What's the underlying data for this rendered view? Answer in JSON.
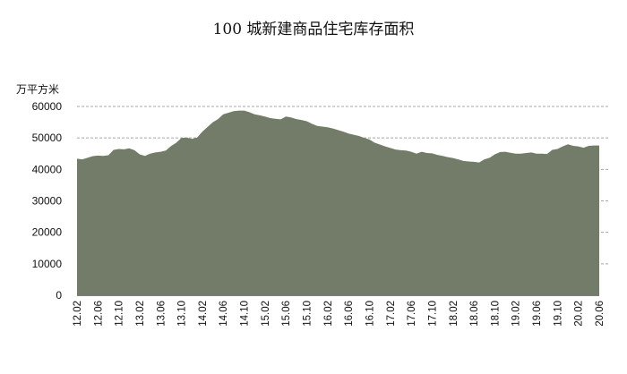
{
  "chart_data": {
    "type": "area",
    "title": "100 城新建商品住宅库存面积",
    "ylabel": "万平方米",
    "ylim": [
      0,
      60000
    ],
    "yticks": [
      0,
      10000,
      20000,
      30000,
      40000,
      50000,
      60000
    ],
    "ytick_labels": [
      "0",
      "10000",
      "20000",
      "30000",
      "40000",
      "50000",
      "60000"
    ],
    "grid": "dashed horizontal",
    "xtick_labels": [
      "12.02",
      "12.06",
      "12.10",
      "13.02",
      "13.06",
      "13.10",
      "14.02",
      "14.06",
      "14.10",
      "15.02",
      "15.06",
      "15.10",
      "16.02",
      "16.06",
      "16.10",
      "17.02",
      "17.06",
      "17.10",
      "18.02",
      "18.06",
      "18.10",
      "19.02",
      "19.06",
      "19.10",
      "20.02",
      "20.06"
    ],
    "x": [
      "12.02",
      "12.03",
      "12.04",
      "12.05",
      "12.06",
      "12.07",
      "12.08",
      "12.09",
      "12.10",
      "12.11",
      "12.12",
      "13.01",
      "13.02",
      "13.03",
      "13.04",
      "13.05",
      "13.06",
      "13.07",
      "13.08",
      "13.09",
      "13.10",
      "13.11",
      "13.12",
      "14.01",
      "14.02",
      "14.03",
      "14.04",
      "14.05",
      "14.06",
      "14.07",
      "14.08",
      "14.09",
      "14.10",
      "14.11",
      "14.12",
      "15.01",
      "15.02",
      "15.03",
      "15.04",
      "15.05",
      "15.06",
      "15.07",
      "15.08",
      "15.09",
      "15.10",
      "15.11",
      "15.12",
      "16.01",
      "16.02",
      "16.03",
      "16.04",
      "16.05",
      "16.06",
      "16.07",
      "16.08",
      "16.09",
      "16.10",
      "16.11",
      "16.12",
      "17.01",
      "17.02",
      "17.03",
      "17.04",
      "17.05",
      "17.06",
      "17.07",
      "17.08",
      "17.09",
      "17.10",
      "17.11",
      "17.12",
      "18.01",
      "18.02",
      "18.03",
      "18.04",
      "18.05",
      "18.06",
      "18.07",
      "18.08",
      "18.09",
      "18.10",
      "18.11",
      "18.12",
      "19.01",
      "19.02",
      "19.03",
      "19.04",
      "19.05",
      "19.06",
      "19.07",
      "19.08",
      "19.09",
      "19.10",
      "19.11",
      "19.12",
      "20.01",
      "20.02",
      "20.03",
      "20.04",
      "20.05",
      "20.06"
    ],
    "series": [
      {
        "color": "#737c68",
        "values": [
          43400,
          43200,
          43700,
          44200,
          44400,
          44300,
          44500,
          46200,
          46500,
          46400,
          46700,
          46100,
          44800,
          44300,
          45000,
          45400,
          45600,
          46000,
          47400,
          48500,
          50000,
          50100,
          49700,
          50100,
          52000,
          53500,
          55000,
          56000,
          57500,
          58000,
          58500,
          58700,
          58700,
          58200,
          57500,
          57200,
          56800,
          56300,
          56100,
          55900,
          56800,
          56500,
          56000,
          55700,
          55300,
          54500,
          53800,
          53600,
          53400,
          53000,
          52500,
          52000,
          51400,
          51000,
          50600,
          50000,
          49500,
          48500,
          47900,
          47300,
          46800,
          46300,
          46100,
          46000,
          45600,
          45000,
          45600,
          45200,
          45100,
          44600,
          44300,
          43900,
          43600,
          43200,
          42700,
          42500,
          42400,
          42200,
          43200,
          43700,
          44800,
          45500,
          45600,
          45300,
          45000,
          45000,
          45200,
          45400,
          45000,
          45000,
          44900,
          46200,
          46500,
          47300,
          48000,
          47500,
          47300,
          46900,
          47500,
          47600,
          47600
        ]
      }
    ]
  }
}
